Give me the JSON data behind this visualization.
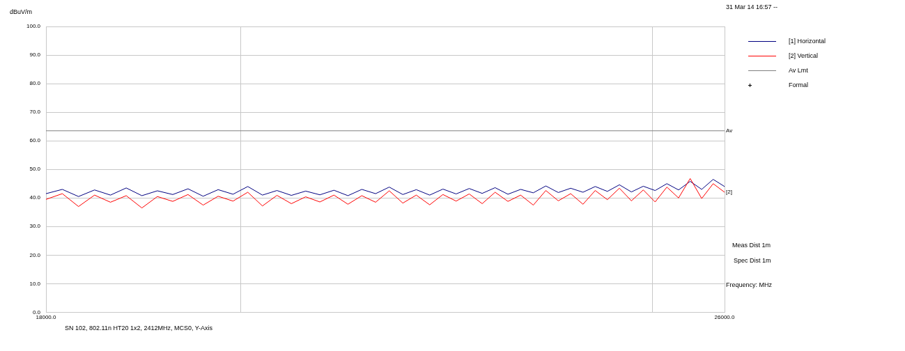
{
  "chart_data": {
    "type": "line",
    "xlabel": "Frequency: MHz",
    "ylabel": "dBuV/m",
    "log": "x",
    "xlim": [
      18000,
      26000
    ],
    "xticks": [
      {
        "value": 18000,
        "label": "18000.0"
      },
      {
        "value": 20000,
        "label": null
      },
      {
        "value": 25000,
        "label": null
      },
      {
        "value": 26000,
        "label": "26000.0"
      }
    ],
    "ylim": [
      0,
      100
    ],
    "yticks": [
      {
        "value": 0,
        "label": "0.0"
      },
      {
        "value": 10,
        "label": "10.0"
      },
      {
        "value": 20,
        "label": "20.0"
      },
      {
        "value": 30,
        "label": "30.0"
      },
      {
        "value": 40,
        "label": "40.0"
      },
      {
        "value": 50,
        "label": "50.0"
      },
      {
        "value": 60,
        "label": "60.0"
      },
      {
        "value": 70,
        "label": "70.0"
      },
      {
        "value": 80,
        "label": "80.0"
      },
      {
        "value": 90,
        "label": "90.0"
      },
      {
        "value": 100,
        "label": "100.0"
      }
    ],
    "grid": true,
    "legend": "top right",
    "marker": "none",
    "line_style": "solid",
    "x": [
      18000,
      18160,
      18320,
      18480,
      18640,
      18800,
      18960,
      19120,
      19280,
      19440,
      19600,
      19760,
      19920,
      20080,
      20240,
      20400,
      20560,
      20720,
      20880,
      21040,
      21200,
      21360,
      21520,
      21680,
      21840,
      22000,
      22160,
      22320,
      22480,
      22640,
      22800,
      22960,
      23120,
      23280,
      23440,
      23600,
      23760,
      23920,
      24080,
      24240,
      24400,
      24560,
      24720,
      24880,
      25040,
      25200,
      25360,
      25520,
      25680,
      25840,
      26000
    ],
    "series": [
      {
        "name": "[1] Horizontal",
        "color": "#000080",
        "values": [
          41.5,
          43.0,
          40.5,
          42.8,
          41.0,
          43.5,
          40.8,
          42.5,
          41.2,
          43.2,
          40.6,
          42.9,
          41.3,
          44.0,
          41.0,
          42.6,
          40.9,
          42.4,
          41.1,
          42.7,
          40.8,
          43.0,
          41.5,
          43.8,
          41.2,
          42.9,
          41.0,
          43.1,
          41.4,
          43.3,
          41.6,
          43.6,
          41.3,
          43.0,
          41.8,
          44.2,
          41.9,
          43.4,
          42.0,
          44.0,
          42.3,
          44.6,
          42.1,
          44.1,
          42.6,
          45.0,
          42.8,
          45.8,
          43.0,
          46.5,
          44.0
        ]
      },
      {
        "name": "[2] Vertical",
        "color": "#ff0000",
        "values": [
          39.5,
          41.5,
          37.0,
          41.0,
          38.5,
          40.8,
          36.5,
          40.5,
          38.8,
          41.2,
          37.5,
          40.6,
          38.9,
          42.0,
          37.2,
          40.9,
          38.0,
          40.4,
          38.6,
          41.0,
          37.8,
          40.8,
          38.5,
          42.5,
          38.2,
          41.0,
          37.6,
          41.2,
          38.9,
          41.4,
          38.0,
          42.0,
          38.8,
          41.0,
          37.5,
          42.6,
          39.0,
          41.5,
          37.8,
          42.6,
          39.4,
          43.4,
          39.0,
          42.8,
          38.6,
          43.8,
          40.0,
          46.8,
          39.8,
          45.0,
          42.0
        ]
      },
      {
        "name": "Av Lmt",
        "color": "#808080",
        "x": [
          18000,
          26000
        ],
        "values": [
          63.5,
          63.5
        ]
      },
      {
        "name": "Formal",
        "type": "scatter",
        "marker": "cross",
        "color": "#000000",
        "values": [
          null,
          null,
          null,
          null,
          null,
          null,
          null,
          null,
          null,
          null,
          null,
          null,
          null,
          null,
          null,
          null,
          null,
          null,
          null,
          null,
          null,
          null,
          null,
          null,
          null,
          null,
          null,
          null,
          null,
          null,
          null,
          null,
          null,
          null,
          null,
          null,
          null,
          null,
          null,
          null,
          null,
          null,
          null,
          null,
          null,
          null,
          null,
          null,
          null,
          null,
          null
        ]
      }
    ],
    "annotations": [
      "31 Mar 14 16:57 --",
      {
        "text": "Av",
        "x": 26000,
        "y": 63.5
      },
      {
        "text": "[2]",
        "x": 26000,
        "y": 42
      },
      "Meas Dist 1m",
      "Spec Dist 1m",
      "SN 102, 802.11n HT20 1x2, 2412MHz, MCS0, Y-Axis"
    ]
  }
}
